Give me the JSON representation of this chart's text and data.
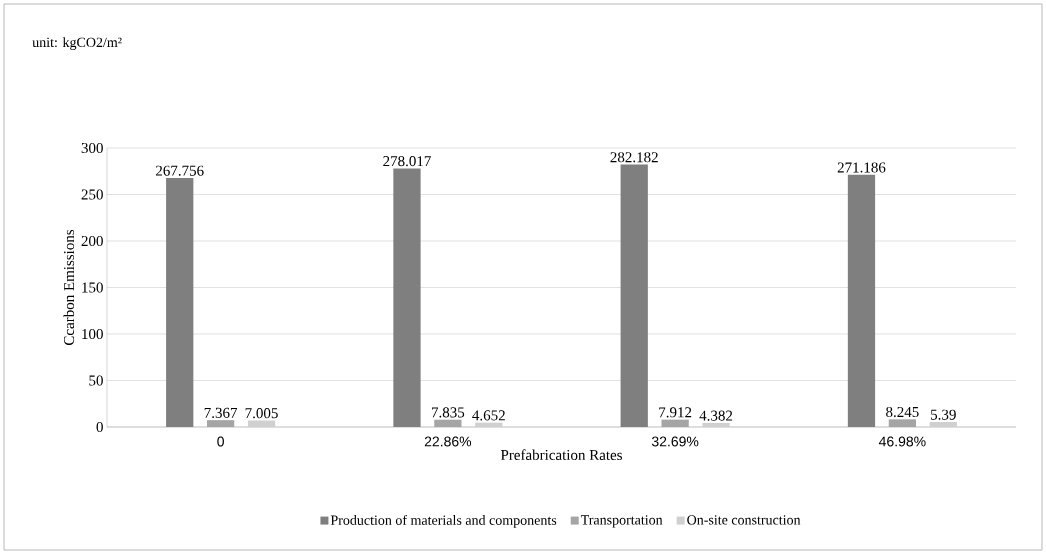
{
  "chart_data": {
    "type": "bar",
    "xlabel": "Prefabrication Rates",
    "ylabel": "Ccarbon Emissions",
    "annotations": [
      "unit: kgCO2/m²"
    ],
    "categories": [
      "0",
      "22.86%",
      "32.69%",
      "46.98%"
    ],
    "series": [
      {
        "name": "Production of materials and components",
        "color": "#7f7f7f",
        "values": [
          267.756,
          278.017,
          282.182,
          271.186
        ]
      },
      {
        "name": "Transportation",
        "color": "#a5a5a5",
        "values": [
          7.367,
          7.835,
          7.912,
          8.245
        ]
      },
      {
        "name": "On-site construction",
        "color": "#d0d0d0",
        "values": [
          7.005,
          4.652,
          4.382,
          5.39
        ]
      }
    ],
    "ylim": [
      0,
      300
    ],
    "yticks": [
      0,
      50,
      100,
      150,
      200,
      250,
      300
    ],
    "grid": "y",
    "legend": "bottom",
    "data_labels": true
  }
}
